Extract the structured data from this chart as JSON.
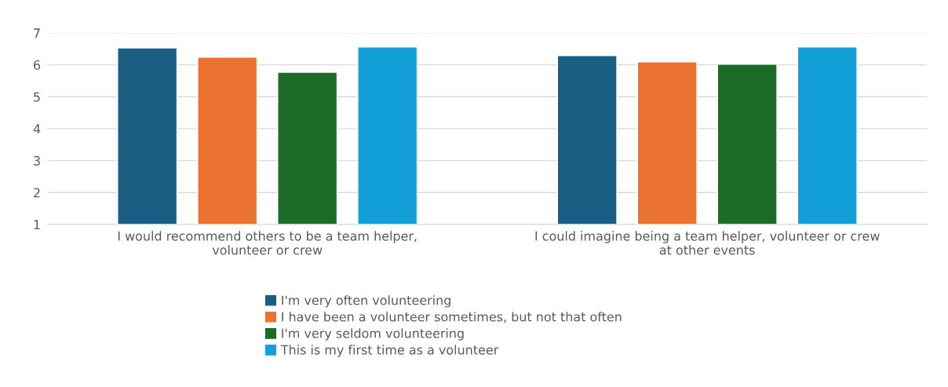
{
  "chart_data": {
    "type": "bar",
    "categories": [
      "I would recommend others to be a team helper,\nvolunteer or crew",
      "I could imagine being a team helper, volunteer or crew\nat other events"
    ],
    "series": [
      {
        "name": "I'm very often volunteering",
        "color": "#1a5f83",
        "values": [
          6.53,
          6.29
        ]
      },
      {
        "name": "I have been a volunteer sometimes, but not that often",
        "color": "#ea7331",
        "values": [
          6.24,
          6.09
        ]
      },
      {
        "name": "I'm very seldom volunteering",
        "color": "#1c6b26",
        "values": [
          5.77,
          6.02
        ]
      },
      {
        "name": "This is my first time as a volunteer",
        "color": "#13a0d8",
        "values": [
          6.56,
          6.56
        ]
      }
    ],
    "ylim": [
      1,
      7
    ],
    "yticks": [
      1,
      2,
      3,
      4,
      5,
      6,
      7
    ],
    "grid": "y",
    "legend": "bottom"
  }
}
